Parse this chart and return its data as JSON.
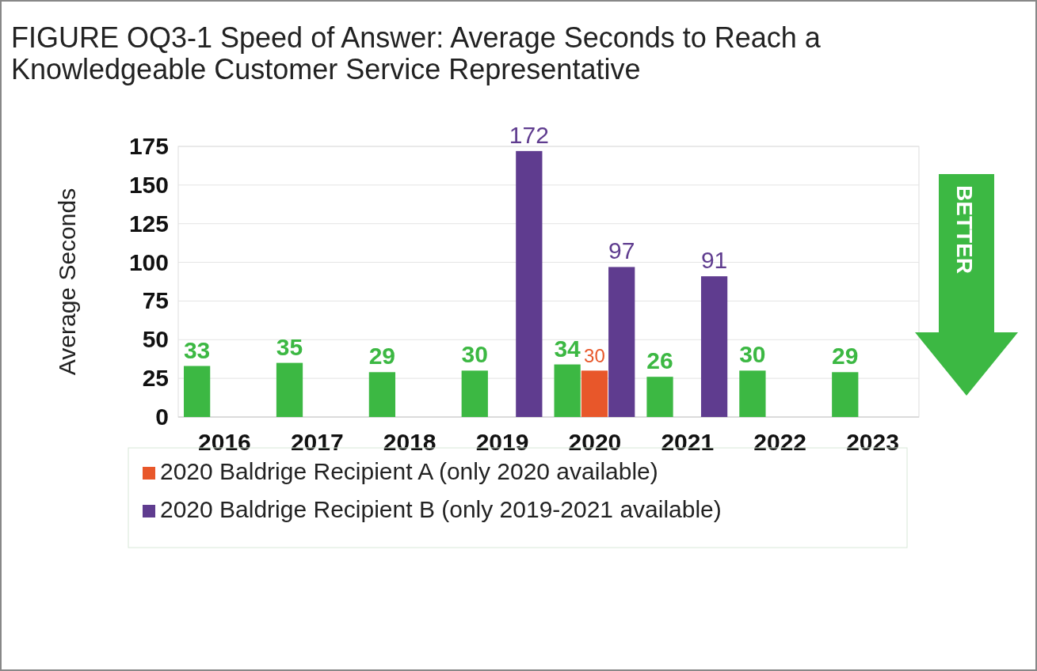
{
  "chart_data": {
    "type": "bar",
    "title": "FIGURE OQ3-1 Speed of Answer: Average Seconds to Reach a Knowledgeable Customer Service Representative",
    "ylabel": "Average Seconds",
    "annotations": [
      "BETTER"
    ],
    "categories": [
      "2016",
      "2017",
      "2018",
      "2019",
      "2020",
      "2021",
      "2022",
      "2023"
    ],
    "series": [
      {
        "color": "#3cb843",
        "values": [
          33,
          35,
          29,
          30,
          34,
          26,
          30,
          29
        ]
      },
      {
        "name": "2020 Baldrige Recipient A (only 2020 available)",
        "color": "#e8572a",
        "values": [
          null,
          null,
          null,
          null,
          30,
          null,
          null,
          null
        ]
      },
      {
        "name": "2020 Baldrige Recipient B (only 2019-2021 available)",
        "color": "#5f3c8f",
        "values": [
          null,
          null,
          null,
          172,
          97,
          91,
          null,
          null
        ]
      }
    ],
    "ylim": [
      0,
      175
    ],
    "yticks": [
      0,
      25,
      50,
      75,
      100,
      125,
      150,
      175
    ],
    "grid": "y",
    "legend": "bottom",
    "data_labels": true
  }
}
